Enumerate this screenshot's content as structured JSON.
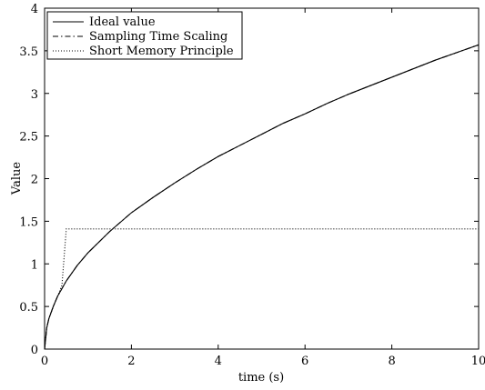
{
  "chart_data": {
    "type": "line",
    "xlabel": "time (s)",
    "ylabel": "Value",
    "xlim": [
      0,
      10
    ],
    "ylim": [
      0,
      4
    ],
    "grid": false,
    "legend_position": "top-left",
    "x_ticks": [
      "0",
      "2",
      "4",
      "6",
      "8",
      "10"
    ],
    "y_ticks": [
      "0",
      "0.5",
      "1",
      "1.5",
      "2",
      "2.5",
      "3",
      "3.5",
      "4"
    ],
    "series": [
      {
        "name": "Ideal value",
        "style": "solid",
        "color": "#000000",
        "x": [
          0,
          0.05,
          0.1,
          0.2,
          0.3,
          0.5,
          0.75,
          1,
          1.5,
          2,
          2.5,
          3,
          3.5,
          4,
          4.5,
          5,
          5.5,
          6,
          6.5,
          7,
          7.5,
          8,
          8.5,
          9,
          9.5,
          10
        ],
        "y": [
          0,
          0.25,
          0.36,
          0.5,
          0.62,
          0.8,
          0.98,
          1.13,
          1.38,
          1.6,
          1.78,
          1.95,
          2.11,
          2.26,
          2.39,
          2.52,
          2.65,
          2.76,
          2.88,
          2.99,
          3.09,
          3.19,
          3.29,
          3.39,
          3.48,
          3.57
        ]
      },
      {
        "name": "Sampling Time Scaling",
        "style": "dashdot",
        "color": "#000000",
        "x": [
          0,
          0.05,
          0.1,
          0.2,
          0.3,
          0.5,
          0.75,
          1,
          1.5,
          2,
          2.5,
          3,
          3.5,
          4,
          4.5,
          5,
          5.5,
          6,
          6.5,
          7,
          7.5,
          8,
          8.5,
          9,
          9.5,
          10
        ],
        "y": [
          0,
          0.25,
          0.36,
          0.5,
          0.62,
          0.8,
          0.98,
          1.13,
          1.38,
          1.6,
          1.78,
          1.95,
          2.11,
          2.26,
          2.39,
          2.52,
          2.65,
          2.76,
          2.88,
          2.99,
          3.09,
          3.19,
          3.29,
          3.39,
          3.48,
          3.57
        ]
      },
      {
        "name": "Short Memory Principle",
        "style": "dotted",
        "color": "#000000",
        "x": [
          0,
          0.05,
          0.1,
          0.2,
          0.3,
          0.4,
          0.5,
          1,
          2,
          4,
          6,
          8,
          10
        ],
        "y": [
          0,
          0.25,
          0.36,
          0.5,
          0.62,
          0.75,
          1.41,
          1.41,
          1.41,
          1.41,
          1.41,
          1.41,
          1.41
        ]
      }
    ]
  }
}
